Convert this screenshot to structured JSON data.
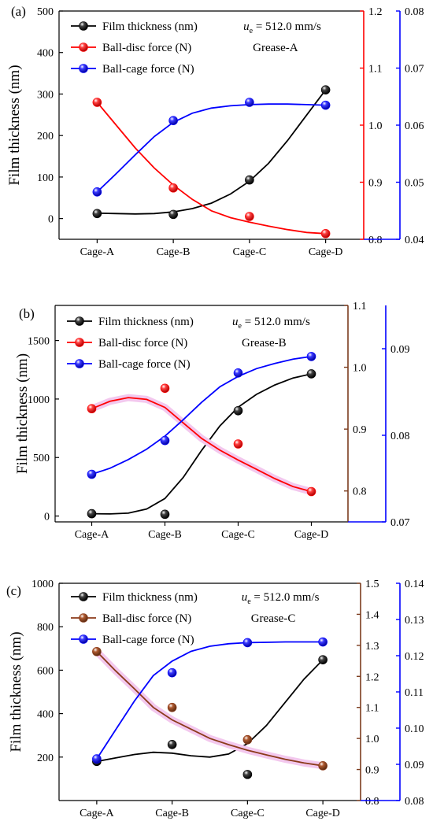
{
  "chart_data": [
    {
      "panel_label": "(a)",
      "type": "line",
      "categories": [
        "Cage-A",
        "Cage-B",
        "Cage-C",
        "Cage-D"
      ],
      "speed_label": "u",
      "speed_sub": "e",
      "speed_value": " = 512.0 mm/s",
      "grease_label": "Grease-A",
      "ylabel": "Film thickness (nm)",
      "axes": {
        "left": {
          "min": -50,
          "max": 500,
          "ticks": [
            0,
            100,
            200,
            300,
            400,
            500
          ],
          "color": "#000000"
        },
        "right1": {
          "min": 0.8,
          "max": 1.2,
          "ticks": [
            0.8,
            0.9,
            1.0,
            1.1,
            1.2
          ],
          "color": "#ff0000"
        },
        "right2": {
          "min": 0.04,
          "max": 0.08,
          "ticks": [
            0.04,
            0.05,
            0.06,
            0.07,
            0.08
          ],
          "color": "#0000ff"
        }
      },
      "series": [
        {
          "name": "Film thickness (nm)",
          "axis": "left",
          "color": "#000000",
          "values": [
            12,
            10,
            93,
            310
          ],
          "curve": [
            13,
            12,
            11,
            12,
            16,
            24,
            37,
            59,
            90,
            133,
            188,
            249,
            310
          ]
        },
        {
          "name": "Ball-disc force (N)",
          "axis": "right1",
          "color": "#ff0000",
          "values": [
            1.04,
            0.89,
            0.84,
            0.81
          ],
          "curve": [
            1.04,
            1.0,
            0.96,
            0.925,
            0.895,
            0.87,
            0.85,
            0.838,
            0.83,
            0.823,
            0.817,
            0.812,
            0.81
          ]
        },
        {
          "name": "Ball-cage force (N)",
          "axis": "right2",
          "color": "#0000ff",
          "values": [
            0.0483,
            0.0608,
            0.064,
            0.0635
          ],
          "curve": [
            0.0483,
            0.0515,
            0.0548,
            0.058,
            0.0605,
            0.0621,
            0.063,
            0.0634,
            0.0636,
            0.0637,
            0.0637,
            0.0636,
            0.0635
          ]
        }
      ]
    },
    {
      "panel_label": "(b)",
      "type": "line",
      "categories": [
        "Cage-A",
        "Cage-B",
        "Cage-C",
        "Cage-D"
      ],
      "speed_label": "u",
      "speed_sub": "e",
      "speed_value": " = 512.0 mm/s",
      "grease_label": "Grease-B",
      "ylabel": "Film thickness (nm)",
      "axes": {
        "left": {
          "min": -50,
          "max": 1800,
          "ticks": [
            0,
            500,
            1000,
            1500
          ],
          "color": "#000000"
        },
        "right1": {
          "min": 0.75,
          "max": 1.1,
          "ticks": [
            0.8,
            0.9,
            1.0,
            1.1
          ],
          "color": "#7b3c1e"
        },
        "right2": {
          "min": 0.07,
          "max": 0.095,
          "ticks": [
            0.07,
            0.08,
            0.09
          ],
          "color": "#0000ff"
        }
      },
      "series": [
        {
          "name": "Film thickness (nm)",
          "axis": "left",
          "color": "#000000",
          "values": [
            20,
            15,
            900,
            1215
          ],
          "curve": [
            20,
            18,
            25,
            60,
            150,
            330,
            560,
            770,
            930,
            1040,
            1120,
            1180,
            1215
          ]
        },
        {
          "name": "Ball-disc force (N)",
          "axis": "right1",
          "color": "#ff0000",
          "values": [
            0.933,
            0.966,
            0.876,
            0.799
          ],
          "curve": [
            0.933,
            0.945,
            0.951,
            0.948,
            0.935,
            0.91,
            0.885,
            0.866,
            0.85,
            0.835,
            0.82,
            0.807,
            0.799
          ]
        },
        {
          "name": "Ball-cage force (N)",
          "axis": "right2",
          "color": "#0000ff",
          "values": [
            0.0755,
            0.0794,
            0.0872,
            0.0891
          ],
          "curve": [
            0.0755,
            0.0762,
            0.0772,
            0.0784,
            0.0799,
            0.0818,
            0.0838,
            0.0856,
            0.0868,
            0.0877,
            0.0883,
            0.0888,
            0.0891
          ]
        }
      ]
    },
    {
      "panel_label": "(c)",
      "type": "line",
      "categories": [
        "Cage-A",
        "Cage-B",
        "Cage-C",
        "Cage-D"
      ],
      "speed_label": "u",
      "speed_sub": "e",
      "speed_value": " = 512.0 mm/s",
      "grease_label": "Grease-C",
      "ylabel": "Film thickness (nm)",
      "axes": {
        "left": {
          "min": 0,
          "max": 1000,
          "ticks": [
            200,
            400,
            600,
            800,
            1000
          ],
          "color": "#000000"
        },
        "right1": {
          "min": 0.8,
          "max": 1.5,
          "ticks": [
            0.8,
            0.9,
            1.0,
            1.1,
            1.2,
            1.3,
            1.4,
            1.5
          ],
          "color": "#7b3c1e"
        },
        "right2": {
          "min": 0.08,
          "max": 0.14,
          "ticks": [
            0.08,
            0.09,
            0.1,
            0.11,
            0.12,
            0.13,
            0.14
          ],
          "color": "#0000ff"
        }
      },
      "series": [
        {
          "name": "Film thickness (nm)",
          "axis": "left",
          "color": "#000000",
          "values": [
            180,
            258,
            120,
            648
          ],
          "curve": [
            180,
            196,
            212,
            222,
            218,
            206,
            200,
            214,
            262,
            345,
            452,
            559,
            648
          ]
        },
        {
          "name": "Ball-disc force (N)",
          "axis": "right1",
          "color": "#8b3a1a",
          "values": [
            1.28,
            1.1,
            0.996,
            0.912
          ],
          "curve": [
            1.28,
            1.218,
            1.16,
            1.1,
            1.06,
            1.03,
            1.0,
            0.98,
            0.962,
            0.947,
            0.933,
            0.921,
            0.912
          ]
        },
        {
          "name": "Ball-cage force (N)",
          "axis": "right2",
          "color": "#0000ff",
          "values": [
            0.0915,
            0.1153,
            0.1236,
            0.1238
          ],
          "curve": [
            0.0915,
            0.0995,
            0.1075,
            0.1145,
            0.1185,
            0.1212,
            0.1226,
            0.1233,
            0.1236,
            0.1237,
            0.1238,
            0.1238,
            0.1238
          ]
        }
      ]
    }
  ]
}
